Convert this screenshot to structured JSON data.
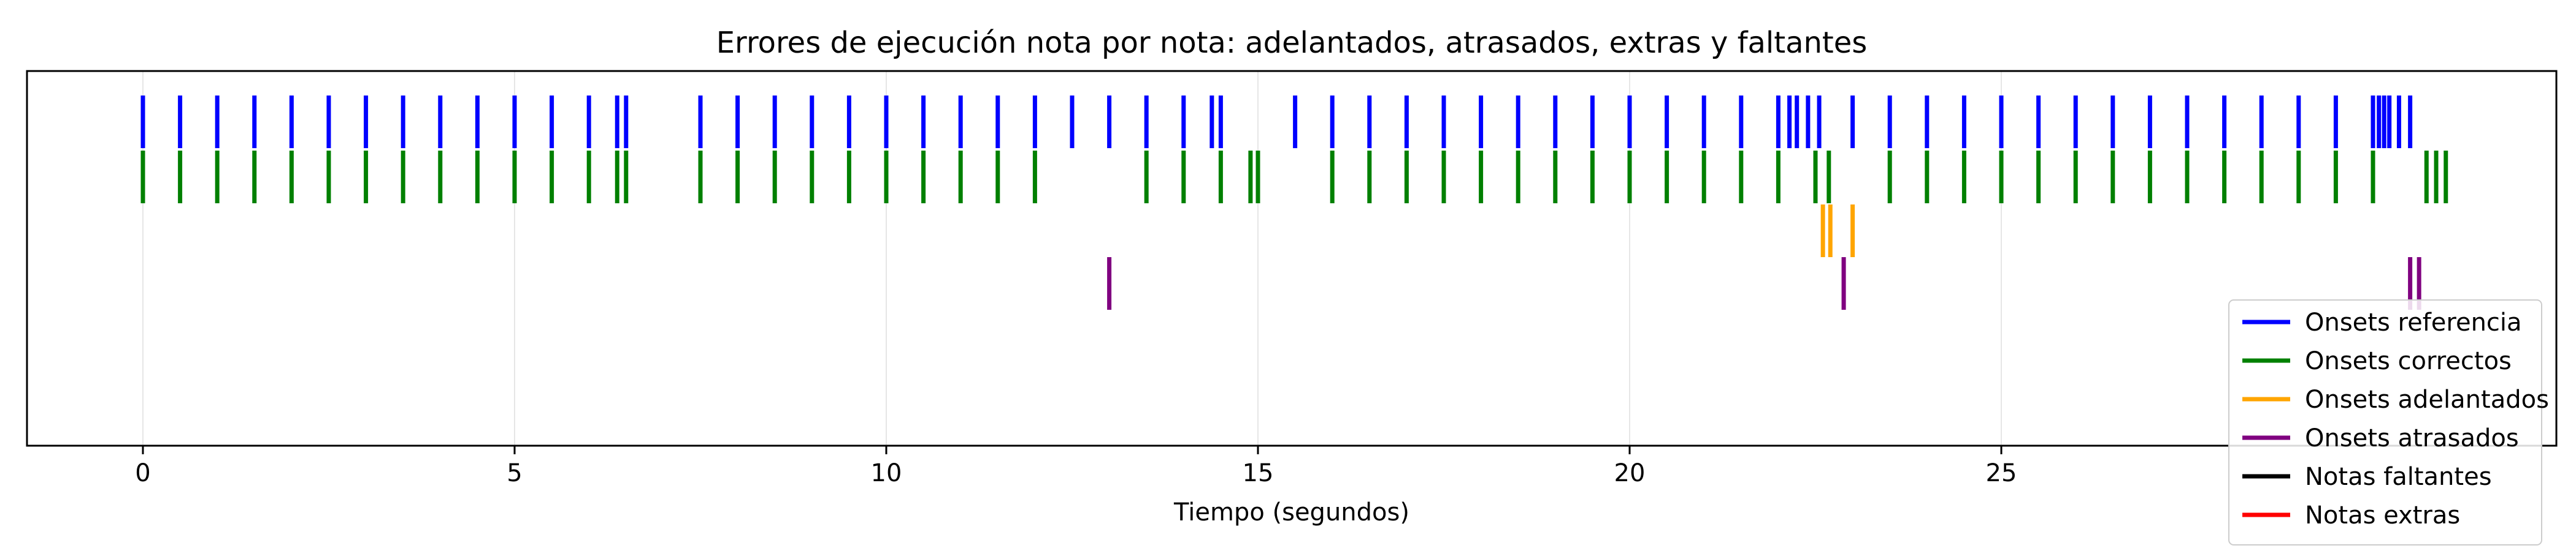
{
  "chart_data": {
    "type": "event-plot",
    "title": "Errores de ejecución nota por nota: adelantados, atrasados, extras y faltantes",
    "xlabel": "Tiempo (segundos)",
    "ylabel": "",
    "xlim": [
      -1.55,
      32.6
    ],
    "xticks": [
      0,
      5,
      10,
      15,
      20,
      25
    ],
    "grid": "vertical",
    "legend_position": "bottom-right",
    "series": [
      {
        "name": "Onsets referencia",
        "color": "#0000ff",
        "values": [
          0,
          0.5,
          1.0,
          1.5,
          2.0,
          2.5,
          3.0,
          3.5,
          4.0,
          4.5,
          5.0,
          5.5,
          6.0,
          6.38,
          6.5,
          7.5,
          8.0,
          8.5,
          9.0,
          9.5,
          10.0,
          10.5,
          11.0,
          11.5,
          12.0,
          12.5,
          13.0,
          13.5,
          14.0,
          14.38,
          14.5,
          15.5,
          16.0,
          16.5,
          17.0,
          17.5,
          18.0,
          18.5,
          19.0,
          19.5,
          20.0,
          20.5,
          21.0,
          21.5,
          22.0,
          22.15,
          22.25,
          22.4,
          22.55,
          23.0,
          23.5,
          24.0,
          24.5,
          25.0,
          25.5,
          26.0,
          26.5,
          27.0,
          27.5,
          28.0,
          28.5,
          29.0,
          29.5,
          30.0,
          30.08,
          30.15,
          30.22,
          30.35,
          30.5
        ]
      },
      {
        "name": "Onsets correctos",
        "color": "#008000",
        "values": [
          0,
          0.5,
          1.0,
          1.5,
          2.0,
          2.5,
          3.0,
          3.5,
          4.0,
          4.5,
          5.0,
          5.5,
          6.0,
          6.38,
          6.5,
          7.5,
          8.0,
          8.5,
          9.0,
          9.5,
          10.0,
          10.5,
          11.0,
          11.5,
          12.0,
          13.5,
          14.0,
          14.5,
          14.9,
          15.0,
          16.0,
          16.5,
          17.0,
          17.5,
          18.0,
          18.5,
          19.0,
          19.5,
          20.0,
          20.5,
          21.0,
          21.5,
          22.0,
          22.5,
          22.68,
          23.5,
          24.0,
          24.5,
          25.0,
          25.5,
          26.0,
          26.5,
          27.0,
          27.5,
          28.0,
          28.5,
          29.0,
          29.5,
          30.0,
          30.72,
          30.85,
          30.98
        ]
      },
      {
        "name": "Onsets adelantados",
        "color": "#ffa500",
        "values": [
          22.6,
          22.7,
          23.0
        ]
      },
      {
        "name": "Onsets atrasados",
        "color": "#800080",
        "values": [
          13.0,
          22.88,
          30.5,
          30.62
        ]
      },
      {
        "name": "Notas faltantes",
        "color": "#000000",
        "values": []
      },
      {
        "name": "Notas extras",
        "color": "#ff0000",
        "values": []
      }
    ]
  }
}
